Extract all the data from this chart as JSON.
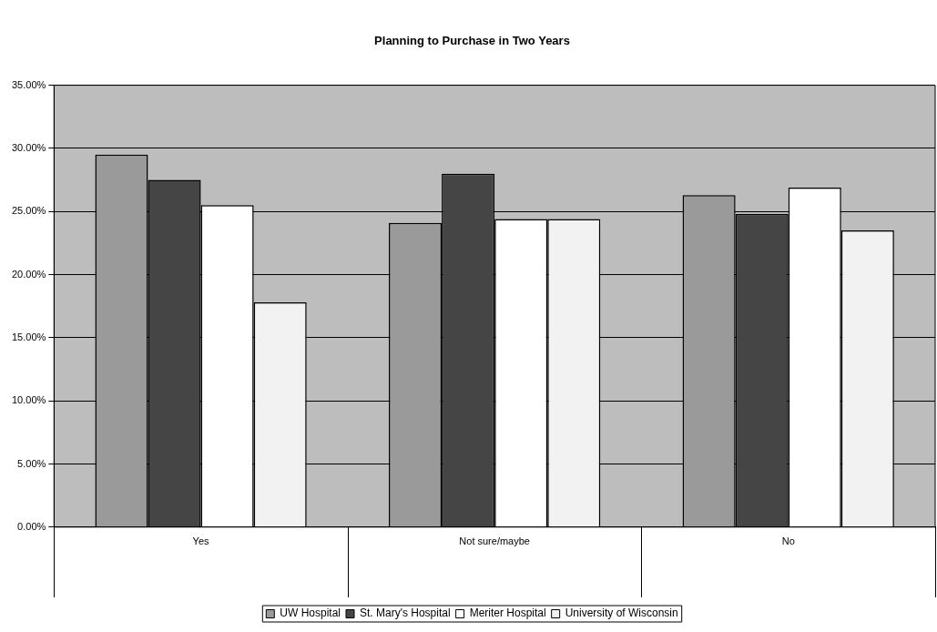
{
  "chart_data": {
    "type": "bar",
    "title": "Planning to Purchase in Two Years",
    "categories": [
      "Yes",
      "Not sure/maybe",
      "No"
    ],
    "series": [
      {
        "name": "UW Hospital",
        "color": "#9a9a9a",
        "values": [
          29.5,
          24.1,
          26.3
        ]
      },
      {
        "name": "St. Mary's Hospital",
        "color": "#454545",
        "values": [
          27.5,
          28.0,
          24.8
        ]
      },
      {
        "name": "Meriter Hospital",
        "color": "#ffffff",
        "values": [
          25.5,
          24.4,
          26.9
        ]
      },
      {
        "name": "University of Wisconsin",
        "color": "#f2f2f2",
        "values": [
          17.8,
          24.4,
          23.5
        ]
      }
    ],
    "ylim": [
      0,
      35
    ],
    "yticks": [
      {
        "value": 0,
        "label": "0.00%"
      },
      {
        "value": 5,
        "label": "5.00%"
      },
      {
        "value": 10,
        "label": "10.00%"
      },
      {
        "value": 15,
        "label": "15.00%"
      },
      {
        "value": 20,
        "label": "20.00%"
      },
      {
        "value": 25,
        "label": "25.00%"
      },
      {
        "value": 30,
        "label": "30.00%"
      },
      {
        "value": 35,
        "label": "35.00%"
      }
    ],
    "grid": "y",
    "legend": "bottom"
  }
}
